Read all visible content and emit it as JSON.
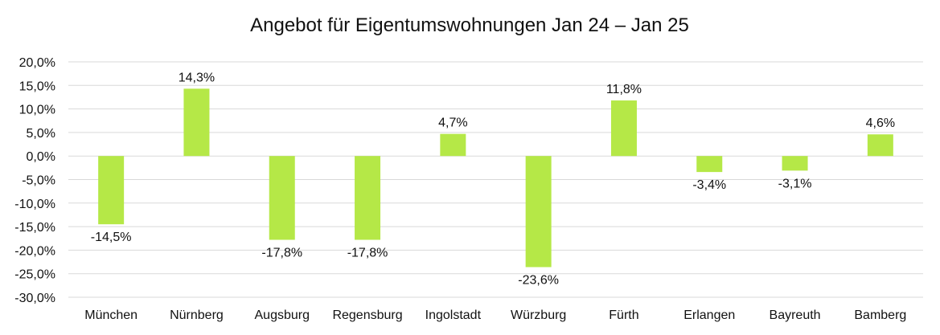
{
  "chart_data": {
    "type": "bar",
    "title": "Angebot für Eigentumswohnungen Jan 24 – Jan 25",
    "xlabel": "",
    "ylabel": "",
    "categories": [
      "München",
      "Nürnberg",
      "Augsburg",
      "Regensburg",
      "Ingolstadt",
      "Würzburg",
      "Fürth",
      "Erlangen",
      "Bayreuth",
      "Bamberg"
    ],
    "values": [
      -14.5,
      14.3,
      -17.8,
      -17.8,
      4.7,
      -23.6,
      11.8,
      -3.4,
      -3.1,
      4.6
    ],
    "data_labels": [
      "-14,5%",
      "14,3%",
      "-17,8%",
      "-17,8%",
      "4,7%",
      "-23,6%",
      "11,8%",
      "-3,4%",
      "-3,1%",
      "4,6%"
    ],
    "ylim": [
      -30,
      20
    ],
    "yticks": [
      20,
      15,
      10,
      5,
      0,
      -5,
      -10,
      -15,
      -20,
      -25,
      -30
    ],
    "ytick_labels": [
      "20,0%",
      "15,0%",
      "10,0%",
      "5,0%",
      "0,0%",
      "-5,0%",
      "-10,0%",
      "-15,0%",
      "-20,0%",
      "-25,0%",
      "-30,0%"
    ],
    "grid": true,
    "legend": "none",
    "bar_color": "#b5e847"
  }
}
